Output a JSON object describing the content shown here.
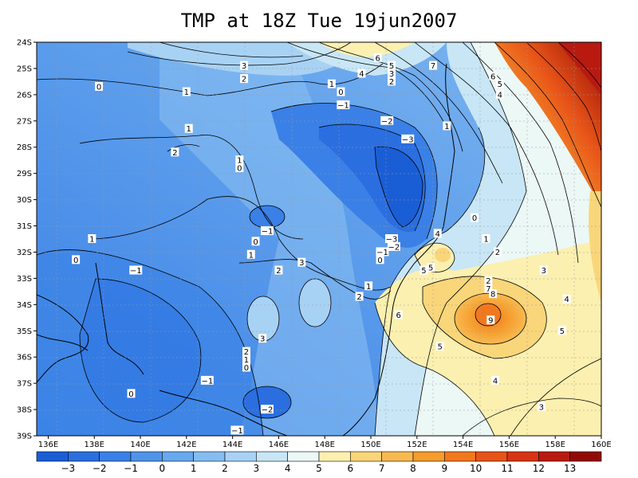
{
  "title": "TMP at 18Z Tue 19jun2007",
  "chart_data": {
    "type": "heatmap",
    "title": "TMP at 18Z Tue 19jun2007",
    "xlabel": "",
    "ylabel": "",
    "xlim": [
      135.5,
      160
    ],
    "ylim": [
      -39,
      -24
    ],
    "x_ticks": [
      "136E",
      "138E",
      "140E",
      "142E",
      "144E",
      "146E",
      "148E",
      "150E",
      "152E",
      "154E",
      "156E",
      "158E",
      "160E"
    ],
    "y_ticks": [
      "24S",
      "25S",
      "26S",
      "27S",
      "28S",
      "29S",
      "30S",
      "31S",
      "32S",
      "33S",
      "34S",
      "35S",
      "36S",
      "37S",
      "38S",
      "39S"
    ],
    "grid": true,
    "colorbar": {
      "labels": [
        "-3",
        "-2",
        "-1",
        "0",
        "1",
        "2",
        "3",
        "4",
        "5",
        "6",
        "7",
        "8",
        "9",
        "10",
        "11",
        "12",
        "13"
      ],
      "colors": [
        "#1a5ed6",
        "#2a6ee0",
        "#3a80e6",
        "#5094ea",
        "#68a8ee",
        "#86bdf1",
        "#a8d2f4",
        "#c8e6f6",
        "#ecf8f6",
        "#fcf0b0",
        "#fad67a",
        "#f8ba50",
        "#f69c2e",
        "#f2781e",
        "#e85418",
        "#d83414",
        "#b81a10",
        "#920a06"
      ]
    },
    "contour_labels": [
      {
        "t": "6",
        "lon": 150.3,
        "lat": -24.6
      },
      {
        "t": "5",
        "lon": 150.9,
        "lat": -24.9
      },
      {
        "t": "4",
        "lon": 149.6,
        "lat": -25.2
      },
      {
        "t": "3",
        "lon": 150.9,
        "lat": -25.2
      },
      {
        "t": "2",
        "lon": 150.9,
        "lat": -25.5
      },
      {
        "t": "7",
        "lon": 152.7,
        "lat": -24.9
      },
      {
        "t": "6",
        "lon": 155.3,
        "lat": -25.3
      },
      {
        "t": "5",
        "lon": 155.6,
        "lat": -25.6
      },
      {
        "t": "4",
        "lon": 155.6,
        "lat": -26.0
      },
      {
        "t": "3",
        "lon": 144.5,
        "lat": -24.9
      },
      {
        "t": "2",
        "lon": 144.5,
        "lat": -25.4
      },
      {
        "t": "1",
        "lon": 142.0,
        "lat": -25.9
      },
      {
        "t": "0",
        "lon": 138.2,
        "lat": -25.7
      },
      {
        "t": "1",
        "lon": 148.3,
        "lat": -25.6
      },
      {
        "t": "0",
        "lon": 148.7,
        "lat": -25.9
      },
      {
        "t": "-1",
        "lon": 148.8,
        "lat": -26.4
      },
      {
        "t": "-2",
        "lon": 150.7,
        "lat": -27.0
      },
      {
        "t": "1",
        "lon": 153.3,
        "lat": -27.2
      },
      {
        "t": "1",
        "lon": 142.1,
        "lat": -27.3
      },
      {
        "t": "2",
        "lon": 141.5,
        "lat": -28.2
      },
      {
        "t": "-3",
        "lon": 151.6,
        "lat": -27.7
      },
      {
        "t": "1",
        "lon": 144.3,
        "lat": -28.5
      },
      {
        "t": "0",
        "lon": 144.3,
        "lat": -28.8
      },
      {
        "t": "0",
        "lon": 154.5,
        "lat": -30.7
      },
      {
        "t": "-1",
        "lon": 145.5,
        "lat": -31.2
      },
      {
        "t": "4",
        "lon": 152.9,
        "lat": -31.3
      },
      {
        "t": "1",
        "lon": 155.0,
        "lat": -31.5
      },
      {
        "t": "1",
        "lon": 137.9,
        "lat": -31.5
      },
      {
        "t": "0",
        "lon": 145.0,
        "lat": -31.6
      },
      {
        "t": "-3",
        "lon": 150.9,
        "lat": -31.5
      },
      {
        "t": "-2",
        "lon": 151.0,
        "lat": -31.8
      },
      {
        "t": "-1",
        "lon": 150.5,
        "lat": -32.0
      },
      {
        "t": "0",
        "lon": 150.4,
        "lat": -32.3
      },
      {
        "t": "2",
        "lon": 155.5,
        "lat": -32.0
      },
      {
        "t": "1",
        "lon": 144.8,
        "lat": -32.1
      },
      {
        "t": "3",
        "lon": 147.0,
        "lat": -32.4
      },
      {
        "t": "0",
        "lon": 137.2,
        "lat": -32.3
      },
      {
        "t": "-1",
        "lon": 139.8,
        "lat": -32.7
      },
      {
        "t": "2",
        "lon": 146.0,
        "lat": -32.7
      },
      {
        "t": "5",
        "lon": 152.3,
        "lat": -32.7
      },
      {
        "t": "5",
        "lon": 152.6,
        "lat": -32.6
      },
      {
        "t": "3",
        "lon": 157.5,
        "lat": -32.7
      },
      {
        "t": "2",
        "lon": 155.1,
        "lat": -33.1
      },
      {
        "t": "1",
        "lon": 149.9,
        "lat": -33.3
      },
      {
        "t": "7",
        "lon": 155.1,
        "lat": -33.4
      },
      {
        "t": "8",
        "lon": 155.3,
        "lat": -33.6
      },
      {
        "t": "2",
        "lon": 149.5,
        "lat": -33.7
      },
      {
        "t": "4",
        "lon": 158.5,
        "lat": -33.8
      },
      {
        "t": "6",
        "lon": 151.2,
        "lat": -34.4
      },
      {
        "t": "9",
        "lon": 155.2,
        "lat": -34.6
      },
      {
        "t": "3",
        "lon": 145.3,
        "lat": -35.3
      },
      {
        "t": "5",
        "lon": 158.3,
        "lat": -35.0
      },
      {
        "t": "5",
        "lon": 153.0,
        "lat": -35.6
      },
      {
        "t": "2",
        "lon": 144.6,
        "lat": -35.8
      },
      {
        "t": "1",
        "lon": 144.6,
        "lat": -36.1
      },
      {
        "t": "0",
        "lon": 144.6,
        "lat": -36.4
      },
      {
        "t": "-1",
        "lon": 142.9,
        "lat": -36.9
      },
      {
        "t": "4",
        "lon": 155.4,
        "lat": -36.9
      },
      {
        "t": "0",
        "lon": 139.6,
        "lat": -37.4
      },
      {
        "t": "3",
        "lon": 157.4,
        "lat": -37.9
      },
      {
        "t": "-2",
        "lon": 145.5,
        "lat": -38.0
      },
      {
        "t": "-1",
        "lon": 144.2,
        "lat": -38.8
      }
    ]
  }
}
